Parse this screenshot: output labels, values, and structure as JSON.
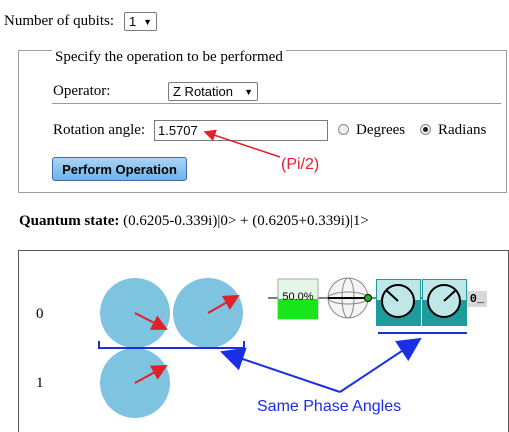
{
  "qubits": {
    "label": "Number of qubits:",
    "value": "1"
  },
  "operation": {
    "legend": "Specify the operation to be performed",
    "operator_label": "Operator:",
    "operator_value": "Z Rotation",
    "angle_label": "Rotation angle:",
    "angle_value": "1.5707",
    "degrees_label": "Degrees",
    "radians_label": "Radians",
    "selected_unit": "Radians",
    "perform_label": "Perform Operation"
  },
  "state": {
    "label": "Quantum state:",
    "value": " (0.6205-0.339i)|0> + (0.6205+0.339i)|1>"
  },
  "circuit": {
    "row0_label": "0",
    "row1_label": "1",
    "probability": "50.0%",
    "probability_fraction": 0.5,
    "output_label": "0_"
  },
  "annotations": {
    "pi_note": "(Pi/2)",
    "phase_note": "Same Phase Angles"
  },
  "colors": {
    "circle": "#7ec3e0",
    "phase_arrow": "#e0202a",
    "annotation_red": "#e0202a",
    "annotation_blue": "#1a2ee6",
    "prob_green": "#19e619",
    "meter_teal": "#1f9b9b",
    "button": "#86c2ef"
  }
}
